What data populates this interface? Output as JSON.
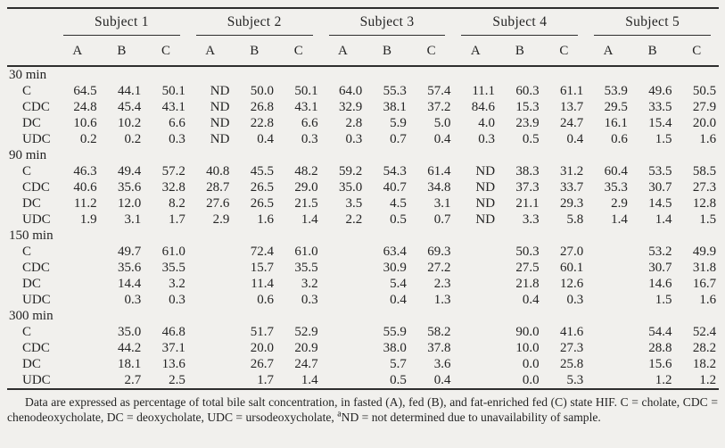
{
  "table": {
    "subjects": [
      "Subject 1",
      "Subject 2",
      "Subject 3",
      "Subject 4",
      "Subject 5"
    ],
    "sub_columns": [
      "A",
      "B",
      "C"
    ],
    "sections": [
      {
        "time": "30 min",
        "rows": [
          {
            "label": "C",
            "values": [
              "64.5",
              "44.1",
              "50.1",
              "ND",
              "50.0",
              "50.1",
              "64.0",
              "55.3",
              "57.4",
              "11.1",
              "60.3",
              "61.1",
              "53.9",
              "49.6",
              "50.5"
            ]
          },
          {
            "label": "CDC",
            "values": [
              "24.8",
              "45.4",
              "43.1",
              "ND",
              "26.8",
              "43.1",
              "32.9",
              "38.1",
              "37.2",
              "84.6",
              "15.3",
              "13.7",
              "29.5",
              "33.5",
              "27.9"
            ]
          },
          {
            "label": "DC",
            "values": [
              "10.6",
              "10.2",
              "6.6",
              "ND",
              "22.8",
              "6.6",
              "2.8",
              "5.9",
              "5.0",
              "4.0",
              "23.9",
              "24.7",
              "16.1",
              "15.4",
              "20.0"
            ]
          },
          {
            "label": "UDC",
            "values": [
              "0.2",
              "0.2",
              "0.3",
              "ND",
              "0.4",
              "0.3",
              "0.3",
              "0.7",
              "0.4",
              "0.3",
              "0.5",
              "0.4",
              "0.6",
              "1.5",
              "1.6"
            ]
          }
        ]
      },
      {
        "time": "90 min",
        "rows": [
          {
            "label": "C",
            "values": [
              "46.3",
              "49.4",
              "57.2",
              "40.8",
              "45.5",
              "48.2",
              "59.2",
              "54.3",
              "61.4",
              "ND",
              "38.3",
              "31.2",
              "60.4",
              "53.5",
              "58.5"
            ]
          },
          {
            "label": "CDC",
            "values": [
              "40.6",
              "35.6",
              "32.8",
              "28.7",
              "26.5",
              "29.0",
              "35.0",
              "40.7",
              "34.8",
              "ND",
              "37.3",
              "33.7",
              "35.3",
              "30.7",
              "27.3"
            ]
          },
          {
            "label": "DC",
            "values": [
              "11.2",
              "12.0",
              "8.2",
              "27.6",
              "26.5",
              "21.5",
              "3.5",
              "4.5",
              "3.1",
              "ND",
              "21.1",
              "29.3",
              "2.9",
              "14.5",
              "12.8"
            ]
          },
          {
            "label": "UDC",
            "values": [
              "1.9",
              "3.1",
              "1.7",
              "2.9",
              "1.6",
              "1.4",
              "2.2",
              "0.5",
              "0.7",
              "ND",
              "3.3",
              "5.8",
              "1.4",
              "1.4",
              "1.5"
            ]
          }
        ]
      },
      {
        "time": "150 min",
        "rows": [
          {
            "label": "C",
            "values": [
              "",
              "49.7",
              "61.0",
              "",
              "72.4",
              "61.0",
              "",
              "63.4",
              "69.3",
              "",
              "50.3",
              "27.0",
              "",
              "53.2",
              "49.9"
            ]
          },
          {
            "label": "CDC",
            "values": [
              "",
              "35.6",
              "35.5",
              "",
              "15.7",
              "35.5",
              "",
              "30.9",
              "27.2",
              "",
              "27.5",
              "60.1",
              "",
              "30.7",
              "31.8"
            ]
          },
          {
            "label": "DC",
            "values": [
              "",
              "14.4",
              "3.2",
              "",
              "11.4",
              "3.2",
              "",
              "5.4",
              "2.3",
              "",
              "21.8",
              "12.6",
              "",
              "14.6",
              "16.7"
            ]
          },
          {
            "label": "UDC",
            "values": [
              "",
              "0.3",
              "0.3",
              "",
              "0.6",
              "0.3",
              "",
              "0.4",
              "1.3",
              "",
              "0.4",
              "0.3",
              "",
              "1.5",
              "1.6"
            ]
          }
        ]
      },
      {
        "time": "300 min",
        "rows": [
          {
            "label": "C",
            "values": [
              "",
              "35.0",
              "46.8",
              "",
              "51.7",
              "52.9",
              "",
              "55.9",
              "58.2",
              "",
              "90.0",
              "41.6",
              "",
              "54.4",
              "52.4"
            ]
          },
          {
            "label": "CDC",
            "values": [
              "",
              "44.2",
              "37.1",
              "",
              "20.0",
              "20.9",
              "",
              "38.0",
              "37.8",
              "",
              "10.0",
              "27.3",
              "",
              "28.8",
              "28.2"
            ]
          },
          {
            "label": "DC",
            "values": [
              "",
              "18.1",
              "13.6",
              "",
              "26.7",
              "24.7",
              "",
              "5.7",
              "3.6",
              "",
              "0.0",
              "25.8",
              "",
              "15.6",
              "18.2"
            ]
          },
          {
            "label": "UDC",
            "values": [
              "",
              "2.7",
              "2.5",
              "",
              "1.7",
              "1.4",
              "",
              "0.5",
              "0.4",
              "",
              "0.0",
              "5.3",
              "",
              "1.2",
              "1.2"
            ]
          }
        ]
      }
    ]
  },
  "footnote": {
    "part1": "Data are expressed as percentage of total bile salt concentration, in fasted (A), fed (B), and fat-enriched fed (C) state HIF. C = cholate, CDC = chenodeoxycholate, DC = deoxycholate, UDC = ursodeoxycholate, ",
    "sup": "a",
    "part2": "ND = not determined due to unavailability of sample."
  },
  "colors": {
    "paper_bg": "#f1f0ed",
    "ink": "#242424",
    "rule": "#2e2e2e"
  }
}
